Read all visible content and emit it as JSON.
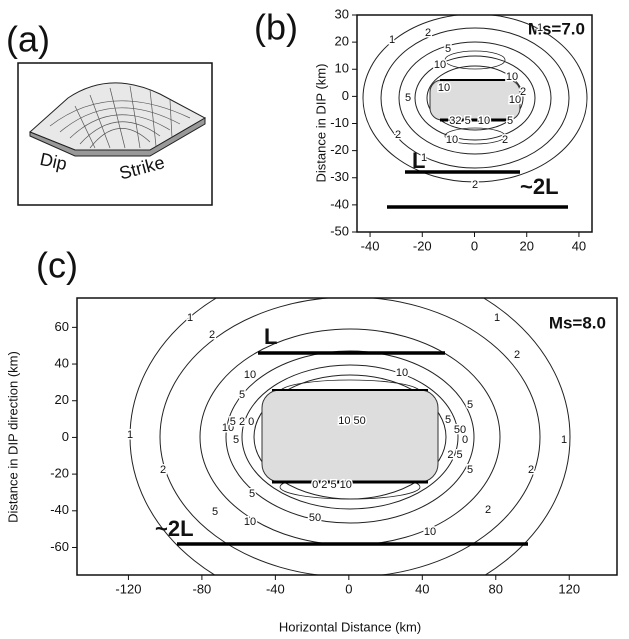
{
  "panels": [
    {
      "label": "(a)",
      "texts": [
        "Dip",
        "Strike"
      ]
    },
    {
      "label": "(b)",
      "annotation": "Ms=7.0",
      "y_axis_title": "Distance in DIP   (km)",
      "xlim": [
        -45,
        45
      ],
      "ylim": [
        -50,
        30
      ],
      "xticks": [
        -40,
        -20,
        0,
        20,
        40
      ],
      "yticks": [
        30,
        20,
        10,
        0,
        -10,
        -20,
        -30,
        -40,
        -50
      ],
      "segment_labels": [
        "L",
        "~2L"
      ],
      "contour_labels": [
        "1",
        "2",
        "5",
        "10",
        "5",
        "2",
        "1",
        "10",
        "10",
        "10",
        "32 5",
        "10",
        "5",
        "10",
        "2",
        "1",
        "2",
        "2"
      ]
    },
    {
      "label": "(c)",
      "annotation": "Ms=8.0",
      "y_axis_title": "Distance in DIP direction (km)",
      "x_axis_title": "Horizontal Distance  (km)",
      "xlim": [
        -148,
        146
      ],
      "ylim": [
        -75,
        76
      ],
      "xticks": [
        -120,
        -80,
        -40,
        0,
        40,
        80,
        120
      ],
      "yticks": [
        60,
        40,
        20,
        0,
        -20,
        -40,
        -60
      ],
      "segment_labels": [
        "L",
        "~2L"
      ],
      "contour_labels": [
        "1",
        "2",
        "1",
        "2",
        "10",
        "10",
        "5",
        "10",
        "5",
        "10 50",
        "5 2 0",
        "0 2 5 10",
        "50",
        "5",
        "2",
        "5",
        "10",
        "10",
        "5",
        "2",
        "5",
        "1",
        "1",
        "2",
        "50",
        "5",
        "2 5",
        "0"
      ]
    }
  ]
}
